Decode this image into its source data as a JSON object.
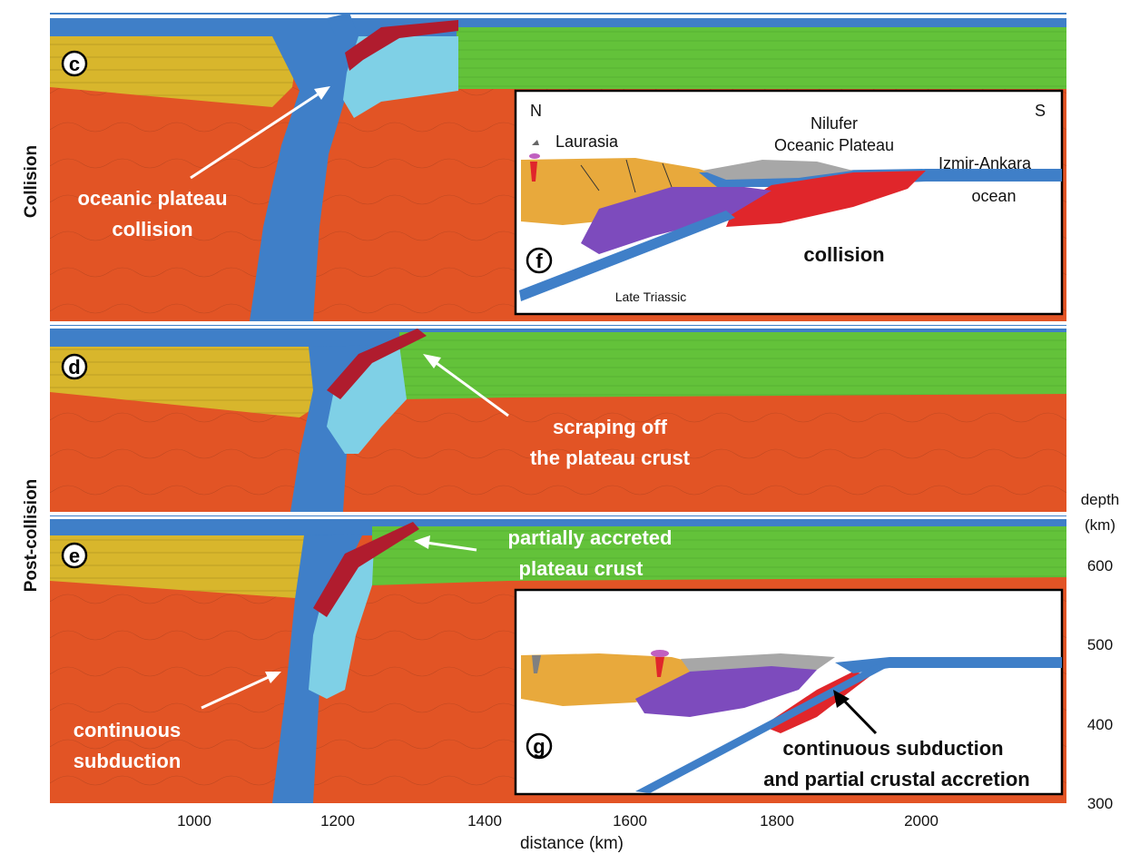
{
  "side_labels": {
    "collision": "Collision",
    "post_collision": "Post-collision"
  },
  "panels": {
    "c": {
      "label": "c",
      "annotation": [
        "oceanic plateau",
        "collision"
      ]
    },
    "d": {
      "label": "d",
      "annotation": [
        "scraping off",
        "the plateau crust"
      ]
    },
    "e": {
      "label": "e",
      "annotation_top": [
        "partially accreted",
        "plateau crust"
      ],
      "annotation_bottom": [
        "continuous",
        "subduction"
      ]
    }
  },
  "inset_f": {
    "label": "f",
    "north": "N",
    "south": "S",
    "laurasia": "Laurasia",
    "plateau": [
      "Nilufer",
      "Oceanic Plateau"
    ],
    "ocean": [
      "Izmir-Ankara",
      "ocean"
    ],
    "stage": "collision",
    "age": "Late Triassic"
  },
  "inset_g": {
    "label": "g",
    "caption": [
      "continuous subduction",
      "and partial crustal accretion"
    ]
  },
  "x_axis": {
    "label": "distance (km)",
    "ticks": [
      "1000",
      "1200",
      "1400",
      "1600",
      "1800",
      "2000"
    ]
  },
  "depth_axis": {
    "label": [
      "depth",
      "(km)"
    ],
    "ticks": [
      "600",
      "500",
      "400",
      "300"
    ]
  },
  "colors": {
    "mantle": "#e25425",
    "continental_crust": "#d8b62c",
    "oceanic_lithosphere": "#3f7fc8",
    "plateau_crust": "#63c23a",
    "subducted_plateau": "#7fd0e6",
    "sediments": "#b01c2e",
    "inset_continent": "#e8a93c",
    "inset_purple": "#7d4bbd",
    "inset_red": "#e0262b",
    "inset_gray": "#a7a7a7"
  }
}
